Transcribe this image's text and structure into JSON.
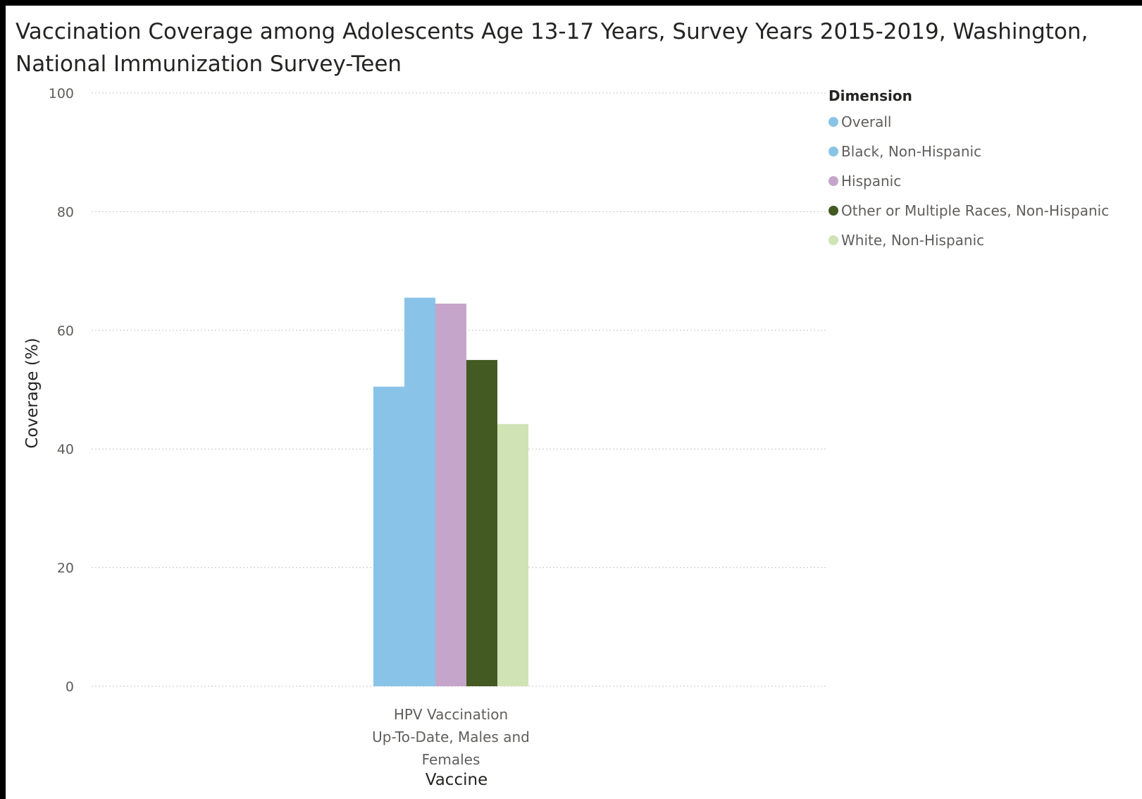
{
  "chart_data": {
    "type": "bar",
    "title": "Vaccination Coverage among Adolescents Age 13-17 Years, Survey Years 2015-2019, Washington, National Immunization Survey-Teen",
    "xlabel": "Vaccine",
    "ylabel": "Coverage (%)",
    "ylim": [
      0,
      100
    ],
    "yticks": [
      "0",
      "20",
      "40",
      "60",
      "80",
      "100"
    ],
    "grid": true,
    "categories": [
      [
        "HPV Vaccination",
        "Up-To-Date, Males and",
        "Females"
      ]
    ],
    "legend": {
      "title": "Dimension",
      "placement": "top-right"
    },
    "series": [
      {
        "name": "Overall",
        "color": "#89c3e8",
        "values": [
          50.5
        ]
      },
      {
        "name": "Black, Non-Hispanic",
        "color": "#89c3e8",
        "values": [
          65.5
        ]
      },
      {
        "name": "Hispanic",
        "color": "#c5a5c9",
        "values": [
          64.5
        ]
      },
      {
        "name": "Other or Multiple Races, Non-Hispanic",
        "color": "#435a22",
        "values": [
          55.0
        ]
      },
      {
        "name": "White, Non-Hispanic",
        "color": "#cfe3b5",
        "values": [
          44.2
        ]
      }
    ]
  }
}
